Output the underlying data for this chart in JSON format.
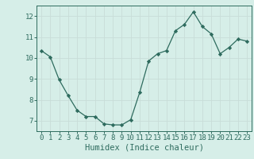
{
  "x": [
    0,
    1,
    2,
    3,
    4,
    5,
    6,
    7,
    8,
    9,
    10,
    11,
    12,
    13,
    14,
    15,
    16,
    17,
    18,
    19,
    20,
    21,
    22,
    23
  ],
  "y": [
    10.35,
    10.05,
    8.95,
    8.2,
    7.5,
    7.2,
    7.2,
    6.85,
    6.8,
    6.8,
    7.05,
    8.35,
    9.85,
    10.2,
    10.35,
    11.3,
    11.6,
    12.2,
    11.5,
    11.15,
    10.2,
    10.5,
    10.9,
    10.8
  ],
  "xlabel": "Humidex (Indice chaleur)",
  "ylim": [
    6.5,
    12.5
  ],
  "xlim": [
    -0.5,
    23.5
  ],
  "yticks": [
    7,
    8,
    9,
    10,
    11,
    12
  ],
  "xticks": [
    0,
    1,
    2,
    3,
    4,
    5,
    6,
    7,
    8,
    9,
    10,
    11,
    12,
    13,
    14,
    15,
    16,
    17,
    18,
    19,
    20,
    21,
    22,
    23
  ],
  "line_color": "#2e6b5e",
  "marker": "D",
  "marker_size": 2.2,
  "bg_color": "#d6eee8",
  "grid_color": "#c8ddd8",
  "axis_color": "#2e6b5e",
  "tick_label_fontsize": 6.5,
  "xlabel_fontsize": 7.5
}
